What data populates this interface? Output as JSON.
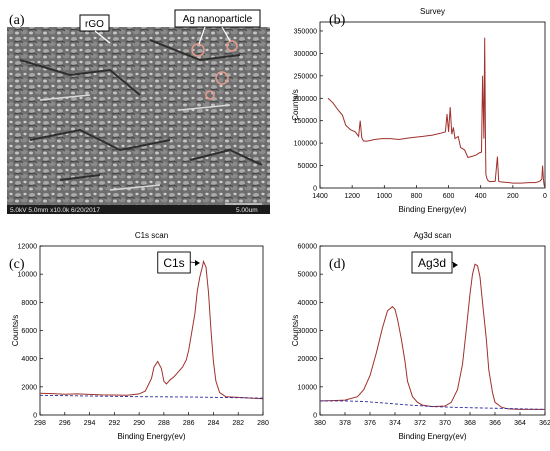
{
  "panels": {
    "a": {
      "letter": "(a)",
      "callouts": [
        "rGO",
        "Ag nanoparticle"
      ],
      "footer": "5.0kV 5.0mm x10.0k 6/20/2017",
      "scale": "5.00um"
    }
  },
  "chart_data": [
    {
      "id": "b",
      "type": "line",
      "panel_label": "(b)",
      "title": "Survey",
      "xlabel": "Binding Energy(ev)",
      "ylabel": "Counts/s",
      "xlim": [
        1400,
        0
      ],
      "ylim": [
        0,
        370000
      ],
      "x_ticks": [
        1400,
        1200,
        1000,
        800,
        600,
        400,
        200,
        0
      ],
      "y_ticks": [
        0,
        50000,
        100000,
        150000,
        200000,
        250000,
        300000,
        350000
      ],
      "series": [
        {
          "color": "#a0302c",
          "x": [
            1350,
            1320,
            1290,
            1260,
            1240,
            1210,
            1180,
            1160,
            1150,
            1140,
            1130,
            1110,
            1060,
            1010,
            960,
            910,
            860,
            810,
            760,
            700,
            650,
            620,
            610,
            600,
            590,
            580,
            570,
            560,
            540,
            525,
            500,
            480,
            460,
            430,
            410,
            395,
            388,
            380,
            375,
            370,
            368,
            362,
            355,
            345,
            310,
            296,
            288,
            280,
            250,
            200,
            150,
            100,
            60,
            40,
            30,
            20,
            15,
            10,
            6,
            3,
            1
          ],
          "y": [
            200000,
            190000,
            175000,
            162000,
            140000,
            130000,
            125000,
            115000,
            150000,
            112000,
            105000,
            104000,
            108000,
            110000,
            110000,
            108000,
            111000,
            113000,
            115000,
            118000,
            122000,
            125000,
            165000,
            125000,
            180000,
            120000,
            135000,
            110000,
            115000,
            90000,
            85000,
            68000,
            70000,
            73000,
            78000,
            80000,
            250000,
            110000,
            335000,
            100000,
            30000,
            22000,
            17000,
            14000,
            15000,
            70000,
            15000,
            14000,
            13000,
            11000,
            11000,
            12000,
            12000,
            14000,
            16000,
            20000,
            50000,
            20000,
            8000,
            4000,
            3000
          ]
        }
      ]
    },
    {
      "id": "c",
      "type": "line",
      "panel_label": "(c)",
      "title": "C1s scan",
      "peak_label": "C1s",
      "xlabel": "Binding Energy(ev)",
      "ylabel": "Counts/s",
      "xlim": [
        298,
        280
      ],
      "ylim": [
        0,
        12000
      ],
      "x_ticks": [
        298,
        296,
        294,
        292,
        290,
        288,
        286,
        284,
        282,
        280
      ],
      "y_ticks": [
        0,
        2000,
        4000,
        6000,
        8000,
        10000,
        12000
      ],
      "series": [
        {
          "color": "#a0302c",
          "x": [
            298,
            297,
            296,
            295,
            294,
            293,
            292,
            291,
            290,
            289.5,
            289,
            288.8,
            288.5,
            288.2,
            288,
            287.8,
            287.5,
            287.2,
            287,
            286.8,
            286.5,
            286.2,
            286,
            285.8,
            285.5,
            285.3,
            285.1,
            284.9,
            284.8,
            284.6,
            284.4,
            284.2,
            284,
            283.8,
            283.5,
            283,
            282,
            281,
            280
          ],
          "y": [
            1550,
            1520,
            1480,
            1500,
            1460,
            1430,
            1420,
            1400,
            1500,
            1700,
            2600,
            3400,
            3800,
            3300,
            2400,
            2200,
            2500,
            2700,
            2900,
            3100,
            3400,
            3900,
            4600,
            5600,
            7200,
            8800,
            9800,
            10500,
            10900,
            10500,
            8700,
            6000,
            3800,
            2400,
            1600,
            1300,
            1250,
            1200,
            1150
          ]
        },
        {
          "color": "#2a2aa0",
          "dashed": true,
          "x": [
            298,
            294,
            290,
            286,
            282,
            280
          ],
          "y": [
            1400,
            1350,
            1300,
            1280,
            1230,
            1200
          ]
        }
      ]
    },
    {
      "id": "d",
      "type": "line",
      "panel_label": "(d)",
      "title": "Ag3d scan",
      "peak_label": "Ag3d",
      "xlabel": "Binding Energy(ev)",
      "ylabel": "Counts/s",
      "xlim": [
        380,
        362
      ],
      "ylim": [
        0,
        60000
      ],
      "x_ticks": [
        380,
        378,
        376,
        374,
        372,
        370,
        368,
        366,
        364,
        362
      ],
      "y_ticks": [
        0,
        10000,
        20000,
        30000,
        40000,
        50000,
        60000
      ],
      "series": [
        {
          "color": "#a0302c",
          "x": [
            380,
            379,
            378,
            377,
            376.5,
            376,
            375.5,
            375,
            374.6,
            374.2,
            374,
            373.8,
            373.5,
            373.2,
            373,
            372.6,
            372.2,
            371.8,
            371,
            370,
            369.5,
            369,
            368.6,
            368.3,
            368,
            367.8,
            367.6,
            367.4,
            367.2,
            367,
            366.7,
            366.5,
            366.2,
            366,
            365.5,
            365,
            364,
            363,
            362
          ],
          "y": [
            5000,
            5100,
            5300,
            6500,
            9000,
            14000,
            22000,
            31000,
            37000,
            38500,
            37500,
            34000,
            27000,
            19000,
            12000,
            6500,
            4500,
            3500,
            3000,
            3200,
            4500,
            9000,
            18000,
            30000,
            43000,
            50000,
            53500,
            53000,
            49000,
            40000,
            27000,
            16000,
            8000,
            4500,
            2800,
            2200,
            2000,
            2000,
            2000
          ]
        },
        {
          "color": "#2a2aa0",
          "dashed": true,
          "x": [
            380,
            378,
            376.5,
            375,
            373,
            371,
            369,
            367,
            365,
            362
          ],
          "y": [
            5000,
            5000,
            4800,
            4300,
            3600,
            3000,
            2700,
            2500,
            2300,
            2000
          ]
        }
      ]
    }
  ]
}
